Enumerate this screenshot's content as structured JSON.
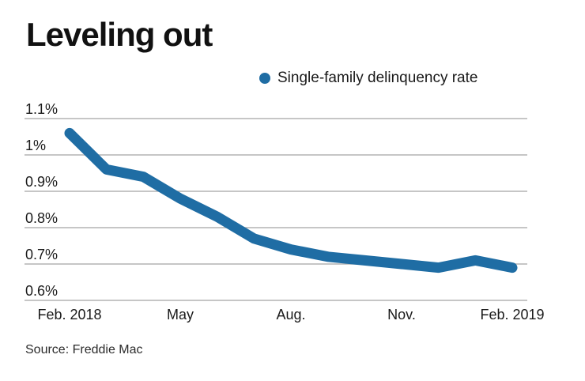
{
  "page": {
    "title": "Leveling out",
    "source": "Source: Freddie Mac"
  },
  "legend": {
    "label": "Single-family delinquency rate"
  },
  "colors": {
    "line": "#1f6da4",
    "legend_dot": "#1f6da4",
    "grid": "#b3b3b3",
    "text": "#1a1a1a"
  },
  "chart_data": {
    "type": "line",
    "title": "Leveling out",
    "grid": true,
    "legend_position": "top-center",
    "ylim": [
      0.6,
      1.1
    ],
    "y_ticks": [
      {
        "label": "1.1%",
        "value": 1.1
      },
      {
        "label": "1%",
        "value": 1.0
      },
      {
        "label": "0.9%",
        "value": 0.9
      },
      {
        "label": "0.8%",
        "value": 0.8
      },
      {
        "label": "0.7%",
        "value": 0.7
      },
      {
        "label": "0.6%",
        "value": 0.6
      }
    ],
    "x_ticks": [
      {
        "label": "Feb. 2018",
        "index": 0
      },
      {
        "label": "May",
        "index": 3
      },
      {
        "label": "Aug.",
        "index": 6
      },
      {
        "label": "Nov.",
        "index": 9
      },
      {
        "label": "Feb. 2019",
        "index": 12
      }
    ],
    "series": [
      {
        "name": "Single-family delinquency rate",
        "color": "#1f6da4",
        "x": [
          "Feb. 2018",
          "Mar. 2018",
          "Apr. 2018",
          "May 2018",
          "Jun. 2018",
          "Jul. 2018",
          "Aug. 2018",
          "Sep. 2018",
          "Oct. 2018",
          "Nov. 2018",
          "Dec. 2018",
          "Jan. 2019",
          "Feb. 2019"
        ],
        "values": [
          1.06,
          0.96,
          0.94,
          0.88,
          0.83,
          0.77,
          0.74,
          0.72,
          0.71,
          0.7,
          0.69,
          0.71,
          0.69
        ]
      }
    ],
    "source": "Source: Freddie Mac"
  }
}
